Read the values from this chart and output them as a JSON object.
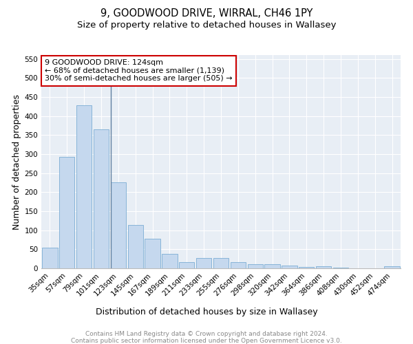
{
  "title": "9, GOODWOOD DRIVE, WIRRAL, CH46 1PY",
  "subtitle": "Size of property relative to detached houses in Wallasey",
  "xlabel": "Distribution of detached houses by size in Wallasey",
  "ylabel": "Number of detached properties",
  "categories": [
    "35sqm",
    "57sqm",
    "79sqm",
    "101sqm",
    "123sqm",
    "145sqm",
    "167sqm",
    "189sqm",
    "211sqm",
    "233sqm",
    "255sqm",
    "276sqm",
    "298sqm",
    "320sqm",
    "342sqm",
    "364sqm",
    "386sqm",
    "408sqm",
    "430sqm",
    "452sqm",
    "474sqm"
  ],
  "values": [
    54,
    292,
    428,
    365,
    225,
    113,
    77,
    38,
    17,
    28,
    28,
    17,
    10,
    10,
    8,
    3,
    5,
    2,
    0,
    0,
    5
  ],
  "bar_color": "#c5d8ee",
  "bar_edge_color": "#7aadd4",
  "highlight_x": "123sqm",
  "highlight_line_color": "#6080a0",
  "annotation_text": "9 GOODWOOD DRIVE: 124sqm\n← 68% of detached houses are smaller (1,139)\n30% of semi-detached houses are larger (505) →",
  "annotation_box_color": "#ffffff",
  "annotation_box_edgecolor": "#cc0000",
  "ylim": [
    0,
    560
  ],
  "yticks": [
    0,
    50,
    100,
    150,
    200,
    250,
    300,
    350,
    400,
    450,
    500,
    550
  ],
  "background_color": "#e8eef5",
  "grid_color": "#ffffff",
  "footer_text": "Contains HM Land Registry data © Crown copyright and database right 2024.\nContains public sector information licensed under the Open Government Licence v3.0.",
  "title_fontsize": 10.5,
  "subtitle_fontsize": 9.5,
  "axis_label_fontsize": 9,
  "tick_fontsize": 7.5,
  "annotation_fontsize": 8,
  "footer_fontsize": 6.5
}
